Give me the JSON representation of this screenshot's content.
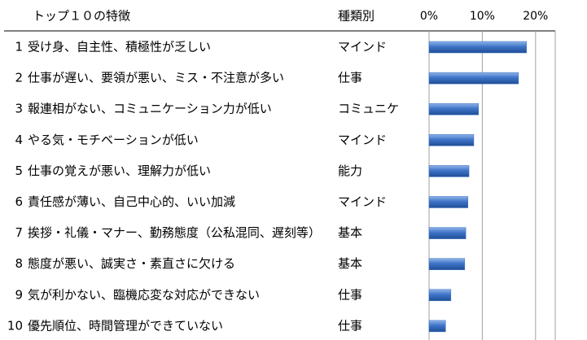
{
  "chart_data": {
    "type": "bar",
    "headers": [
      "トップ１０の特徴",
      "種類別"
    ],
    "ranks": [
      1,
      2,
      3,
      4,
      5,
      6,
      7,
      8,
      9,
      10
    ],
    "categories": [
      "受け身、自主性、積極性が乏しい",
      "仕事が遅い、要領が悪い、ミス・不注意が多い",
      "報連相がない、コミュニケーション力が低い",
      "やる気・モチベーションが低い",
      "仕事の覚えが悪い、理解力が低い",
      "責任感が薄い、自己中心的、いい加減",
      "挨拶・礼儀・マナー、勤務態度（公私混同、遅刻等）",
      "態度が悪い、誠実さ・素直さに欠ける",
      "気が利かない、臨機応変な対応ができない",
      "優先順位、時間管理ができていない"
    ],
    "types": [
      "マインド",
      "仕事",
      "コミュニケ",
      "マインド",
      "能力",
      "マインド",
      "基本",
      "基本",
      "仕事",
      "仕事"
    ],
    "values": [
      18.3,
      16.8,
      9.3,
      8.4,
      7.5,
      7.3,
      6.9,
      6.7,
      4.1,
      3.1
    ],
    "color": "#3a6fc0",
    "xlim": [
      0,
      23.7
    ],
    "xticks": [
      {
        "value": 0,
        "label": "0%"
      },
      {
        "value": 10,
        "label": "10%"
      },
      {
        "value": 20,
        "label": "20%"
      }
    ],
    "grid": true
  }
}
